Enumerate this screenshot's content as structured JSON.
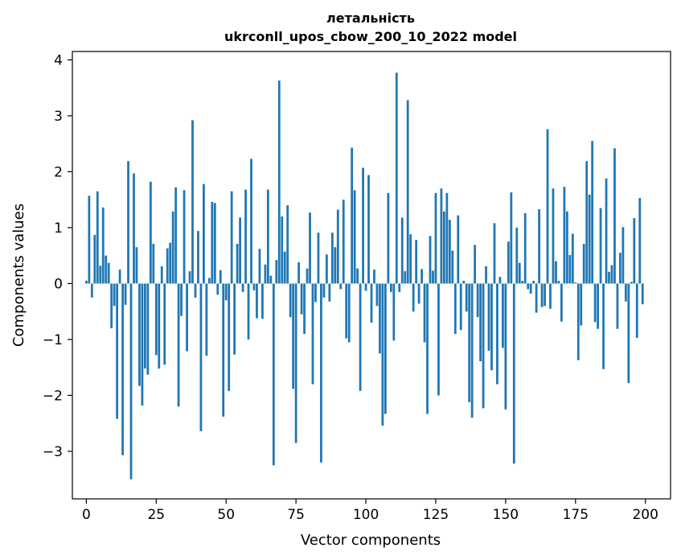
{
  "chart_data": {
    "type": "bar",
    "title_line1": "летальність",
    "title_line2": "ukrconll_upos_cbow_200_10_2022 model",
    "xlabel": "Vector components",
    "ylabel": "Components values",
    "xlim": [
      -5,
      209
    ],
    "ylim": [
      -3.85,
      4.15
    ],
    "xticks": [
      0,
      25,
      50,
      75,
      100,
      125,
      150,
      175,
      200
    ],
    "xtick_labels": [
      "0",
      "25",
      "50",
      "75",
      "100",
      "125",
      "150",
      "175",
      "200"
    ],
    "yticks": [
      -3,
      -2,
      -1,
      0,
      1,
      2,
      3,
      4
    ],
    "ytick_labels": [
      "−3",
      "−2",
      "−1",
      "0",
      "1",
      "2",
      "3",
      "4"
    ],
    "bar_color": "#1f77b4",
    "x": [
      0,
      1,
      2,
      3,
      4,
      5,
      6,
      7,
      8,
      9,
      10,
      11,
      12,
      13,
      14,
      15,
      16,
      17,
      18,
      19,
      20,
      21,
      22,
      23,
      24,
      25,
      26,
      27,
      28,
      29,
      30,
      31,
      32,
      33,
      34,
      35,
      36,
      37,
      38,
      39,
      40,
      41,
      42,
      43,
      44,
      45,
      46,
      47,
      48,
      49,
      50,
      51,
      52,
      53,
      54,
      55,
      56,
      57,
      58,
      59,
      60,
      61,
      62,
      63,
      64,
      65,
      66,
      67,
      68,
      69,
      70,
      71,
      72,
      73,
      74,
      75,
      76,
      77,
      78,
      79,
      80,
      81,
      82,
      83,
      84,
      85,
      86,
      87,
      88,
      89,
      90,
      91,
      92,
      93,
      94,
      95,
      96,
      97,
      98,
      99,
      100,
      101,
      102,
      103,
      104,
      105,
      106,
      107,
      108,
      109,
      110,
      111,
      112,
      113,
      114,
      115,
      116,
      117,
      118,
      119,
      120,
      121,
      122,
      123,
      124,
      125,
      126,
      127,
      128,
      129,
      130,
      131,
      132,
      133,
      134,
      135,
      136,
      137,
      138,
      139,
      140,
      141,
      142,
      143,
      144,
      145,
      146,
      147,
      148,
      149,
      150,
      151,
      152,
      153,
      154,
      155,
      156,
      157,
      158,
      159,
      160,
      161,
      162,
      163,
      164,
      165,
      166,
      167,
      168,
      169,
      170,
      171,
      172,
      173,
      174,
      175,
      176,
      177,
      178,
      179,
      180,
      181,
      182,
      183,
      184,
      185,
      186,
      187,
      188,
      189,
      190,
      191,
      192,
      193,
      194,
      195,
      196,
      197,
      198,
      199
    ],
    "values": [
      0.05,
      1.57,
      -0.25,
      0.87,
      1.65,
      0.32,
      1.36,
      0.5,
      0.37,
      -0.8,
      -0.4,
      -2.42,
      0.25,
      -3.07,
      -0.38,
      2.19,
      -3.5,
      1.97,
      0.65,
      -1.83,
      -2.18,
      -1.52,
      -1.63,
      1.82,
      0.71,
      -1.28,
      -1.52,
      0.31,
      -1.45,
      0.63,
      0.73,
      1.29,
      1.72,
      -2.2,
      -0.58,
      1.67,
      -1.21,
      0.22,
      2.92,
      -0.25,
      0.94,
      -2.64,
      1.78,
      -1.29,
      0.1,
      1.46,
      1.44,
      -0.2,
      0.24,
      -2.38,
      -0.3,
      -1.92,
      1.65,
      -1.27,
      0.71,
      1.18,
      -0.15,
      1.68,
      -1.0,
      2.23,
      -0.12,
      -0.62,
      0.62,
      -0.63,
      0.34,
      1.68,
      0.14,
      -3.25,
      0.42,
      3.63,
      1.2,
      0.57,
      1.4,
      -0.6,
      -1.88,
      -2.85,
      0.38,
      -0.55,
      -0.9,
      0.27,
      1.27,
      -1.8,
      -0.33,
      0.91,
      -3.2,
      -0.25,
      0.52,
      -0.32,
      0.91,
      0.65,
      1.32,
      -0.1,
      1.5,
      -0.98,
      -1.05,
      2.43,
      1.67,
      0.27,
      -1.92,
      2.07,
      -0.13,
      1.94,
      -0.7,
      0.25,
      -0.4,
      -1.25,
      -2.54,
      -2.33,
      1.62,
      -0.15,
      -1.02,
      3.77,
      -0.15,
      1.18,
      0.22,
      3.28,
      0.88,
      -0.5,
      0.78,
      -0.36,
      0.26,
      -1.05,
      -2.33,
      0.85,
      0.23,
      1.62,
      -2.0,
      1.7,
      1.29,
      1.62,
      1.14,
      0.59,
      -0.9,
      1.22,
      -0.83,
      0.05,
      -0.5,
      -2.12,
      -2.4,
      0.69,
      -0.6,
      -1.39,
      -2.23,
      0.31,
      -1.2,
      -1.55,
      1.08,
      -1.8,
      0.12,
      -1.15,
      -2.25,
      0.75,
      1.63,
      -3.22,
      1.0,
      0.37,
      0.05,
      1.26,
      -0.1,
      -0.18,
      0.05,
      -0.52,
      1.33,
      -0.42,
      -0.4,
      2.76,
      -0.45,
      1.7,
      0.4,
      0.05,
      -0.68,
      1.73,
      1.29,
      0.51,
      0.89,
      0.02,
      -1.37,
      -0.75,
      0.71,
      2.19,
      1.59,
      2.55,
      -0.69,
      -0.81,
      1.35,
      -1.53,
      1.88,
      0.21,
      0.33,
      2.42,
      -0.81,
      0.55,
      1.01,
      -0.32,
      -1.78,
      0.03,
      1.17,
      -0.97,
      1.53,
      -0.37
    ]
  }
}
